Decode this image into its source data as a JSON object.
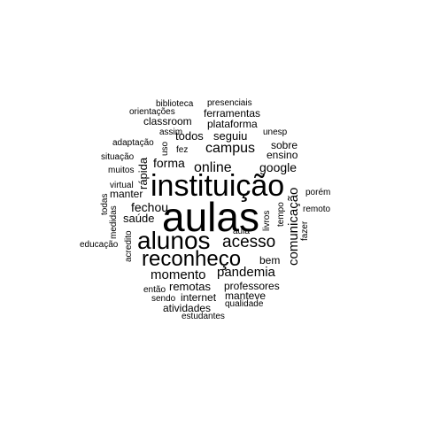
{
  "text_color": "#000000",
  "background_color": "#ffffff",
  "words": [
    {
      "text": "aulas"
    },
    {
      "text": "instituição"
    },
    {
      "text": "alunos"
    },
    {
      "text": "reconheço"
    },
    {
      "text": "acesso"
    },
    {
      "text": "pandemia"
    },
    {
      "text": "comunicação"
    },
    {
      "text": "online"
    },
    {
      "text": "campus"
    },
    {
      "text": "momento"
    },
    {
      "text": "google"
    },
    {
      "text": "forma"
    },
    {
      "text": "todos"
    },
    {
      "text": "seguiu"
    },
    {
      "text": "ferramentas"
    },
    {
      "text": "plataforma"
    },
    {
      "text": "fechou"
    },
    {
      "text": "saúde"
    },
    {
      "text": "remotas"
    },
    {
      "text": "professores"
    },
    {
      "text": "internet"
    },
    {
      "text": "manteve"
    },
    {
      "text": "atividades"
    },
    {
      "text": "manter"
    },
    {
      "text": "rápida"
    },
    {
      "text": "bem"
    },
    {
      "text": "sobre"
    },
    {
      "text": "ensino"
    },
    {
      "text": "classroom"
    },
    {
      "text": "biblioteca"
    },
    {
      "text": "presenciais"
    },
    {
      "text": "orientações"
    },
    {
      "text": "assim"
    },
    {
      "text": "unesp"
    },
    {
      "text": "adaptação"
    },
    {
      "text": "uso"
    },
    {
      "text": "fez"
    },
    {
      "text": "situação"
    },
    {
      "text": "muitos"
    },
    {
      "text": "virtual"
    },
    {
      "text": "todas"
    },
    {
      "text": "medidas"
    },
    {
      "text": "acredito"
    },
    {
      "text": "educação"
    },
    {
      "text": "porém"
    },
    {
      "text": "remoto"
    },
    {
      "text": "fazer"
    },
    {
      "text": "tempo"
    },
    {
      "text": "livros"
    },
    {
      "text": "aula"
    },
    {
      "text": "então"
    },
    {
      "text": "sendo"
    },
    {
      "text": "qualidade"
    },
    {
      "text": "estudantes"
    }
  ]
}
